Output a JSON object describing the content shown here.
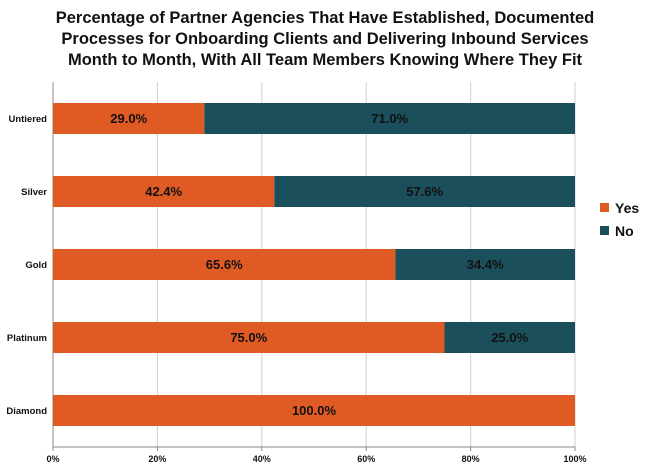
{
  "title_lines": [
    "Percentage of Partner Agencies That Have Established, Documented",
    "Processes for Onboarding Clients and Delivering Inbound Services",
    "Month to Month, With All Team Members Knowing Where They Fit"
  ],
  "colors": {
    "yes": "#e05a24",
    "no": "#1b4f5c",
    "grid": "#d0d0d0",
    "axis": "#888888"
  },
  "chart_data": {
    "type": "bar",
    "orientation": "horizontal",
    "stacked": true,
    "title": "Percentage of Partner Agencies That Have Established, Documented Processes for Onboarding Clients and Delivering Inbound Services Month to Month, With All Team Members Knowing Where They Fit",
    "categories": [
      "Untiered",
      "Silver",
      "Gold",
      "Platinum",
      "Diamond"
    ],
    "series": [
      {
        "name": "Yes",
        "values": [
          29.0,
          42.4,
          65.6,
          75.0,
          100.0
        ],
        "labels": [
          "29.0%",
          "42.4%",
          "65.6%",
          "75.0%",
          "100.0%"
        ]
      },
      {
        "name": "No",
        "values": [
          71.0,
          57.6,
          34.4,
          25.0,
          0.0
        ],
        "labels": [
          "71.0%",
          "57.6%",
          "34.4%",
          "25.0%",
          ""
        ]
      }
    ],
    "xlim": [
      0,
      100
    ],
    "xticks": [
      0,
      20,
      40,
      60,
      80,
      100
    ],
    "xtick_labels": [
      "0%",
      "20%",
      "40%",
      "60%",
      "80%",
      "100%"
    ],
    "grid": true,
    "legend_position": "right"
  }
}
